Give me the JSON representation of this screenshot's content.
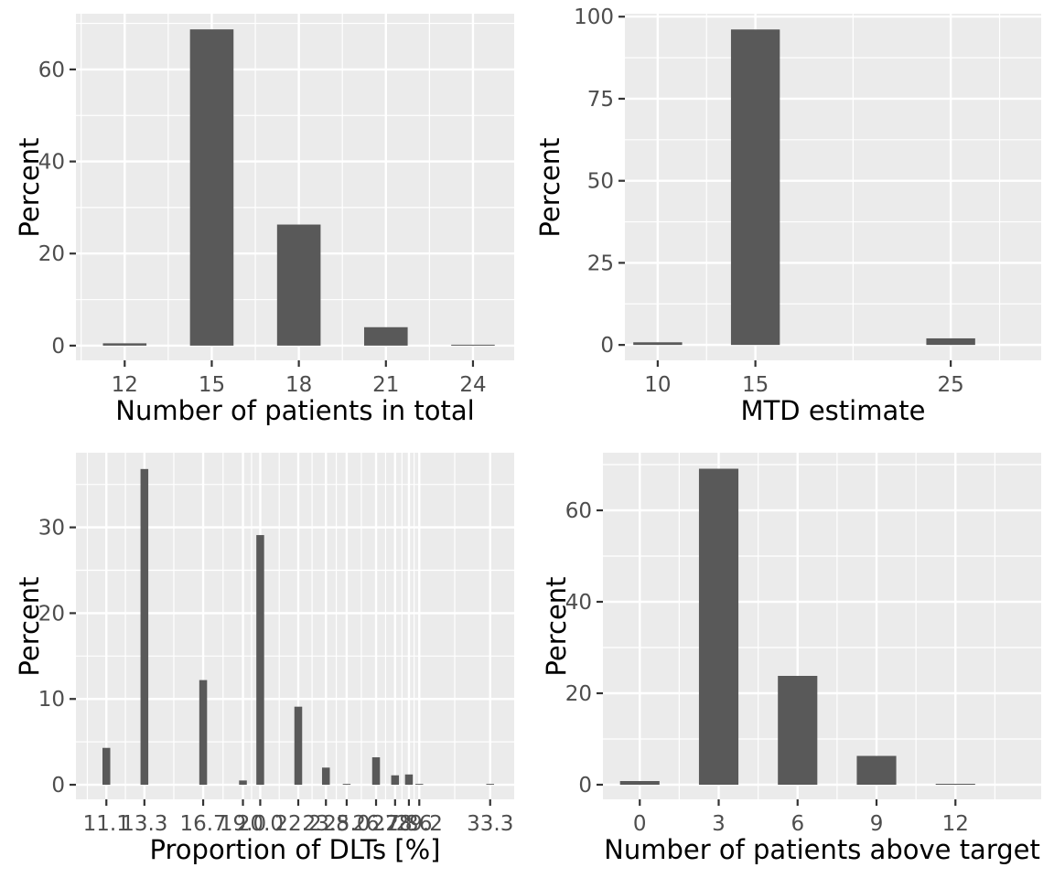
{
  "figure": {
    "background": "#FFFFFF",
    "layout": "2x2-grid"
  },
  "style": {
    "panel_bg": "#EBEBEB",
    "grid_color": "#FFFFFF",
    "bar_color": "#595959",
    "tick_mark_color": "#333333",
    "tick_label_color": "#4D4D4D",
    "axis_title_color": "#000000"
  },
  "chart_data": [
    {
      "id": "number-of-patients-in-total",
      "type": "bar",
      "position": "top-left",
      "title": "",
      "xlabel": "Number of patients in total",
      "ylabel": "Percent",
      "x": [
        12,
        15,
        18,
        21,
        24
      ],
      "values": [
        0.5,
        68.7,
        26.3,
        4.0,
        0.2
      ],
      "bar_width": 1.5,
      "x_ticks": [
        12,
        15,
        18,
        21,
        24
      ],
      "x_tick_labels": [
        "12",
        "15",
        "18",
        "21",
        "24"
      ],
      "x_minor": [
        10.5,
        13.5,
        16.5,
        19.5,
        22.5
      ],
      "y_ticks": [
        0,
        20,
        40,
        60
      ],
      "y_tick_labels": [
        "0",
        "20",
        "40",
        "60"
      ],
      "y_minor": [
        10,
        30,
        50,
        70
      ],
      "xlim": [
        10.32,
        25.42
      ],
      "ylim": [
        -3.2,
        72.1
      ],
      "grid": true,
      "legend": "none"
    },
    {
      "id": "mtd-estimate",
      "type": "bar",
      "position": "top-right",
      "title": "",
      "xlabel": "MTD estimate",
      "ylabel": "Percent",
      "x": [
        10,
        15,
        25
      ],
      "values": [
        0.8,
        96.1,
        2.0
      ],
      "bar_width": 2.5,
      "x_ticks": [
        10,
        15,
        25
      ],
      "x_tick_labels": [
        "10",
        "15",
        "25"
      ],
      "x_minor": [
        12.5,
        20,
        27.5
      ],
      "y_ticks": [
        0,
        25,
        50,
        75,
        100
      ],
      "y_tick_labels": [
        "0",
        "25",
        "50",
        "75",
        "100"
      ],
      "y_minor": [
        12.5,
        37.5,
        62.5,
        87.5
      ],
      "xlim": [
        8.32,
        29.63
      ],
      "ylim": [
        -4.7,
        100.9
      ],
      "grid": true,
      "legend": "none"
    },
    {
      "id": "proportion-of-dlts",
      "type": "bar",
      "position": "bottom-left",
      "title": "",
      "xlabel": "Proportion of DLTs [%]",
      "ylabel": "Percent",
      "x": [
        11.1,
        13.3,
        16.7,
        19.0,
        20.0,
        22.2,
        23.8,
        25.0,
        26.7,
        27.8,
        28.6,
        29.2,
        33.3
      ],
      "values": [
        4.3,
        36.8,
        12.2,
        0.5,
        29.1,
        9.1,
        2.0,
        0.1,
        3.2,
        1.1,
        1.2,
        0.1,
        0.1
      ],
      "bar_width": 0.45,
      "x_ticks": [
        11.1,
        13.3,
        16.7,
        19.0,
        20.0,
        22.2,
        23.8,
        25.0,
        26.7,
        27.8,
        28.6,
        29.2,
        33.3
      ],
      "x_tick_labels": [
        "11.1",
        "13.3",
        "16.7",
        "19.0",
        "20.0",
        "22.2",
        "23.8",
        "25.0",
        "26.7",
        "27.8",
        "28.6",
        "29.2",
        "33.3"
      ],
      "x_minor": [
        10.0,
        12.2,
        15.0,
        17.85,
        19.5,
        21.1,
        23.0,
        24.4,
        25.85,
        27.25,
        28.2,
        28.9,
        31.25
      ],
      "y_ticks": [
        0,
        10,
        20,
        30
      ],
      "y_tick_labels": [
        "0",
        "10",
        "20",
        "30"
      ],
      "y_minor": [
        5,
        15,
        25,
        35
      ],
      "xlim": [
        9.34,
        34.69
      ],
      "ylim": [
        -1.7,
        38.7
      ],
      "grid": true,
      "legend": "none"
    },
    {
      "id": "number-of-patients-above-target",
      "type": "bar",
      "position": "bottom-right",
      "title": "",
      "xlabel": "Number of patients above target",
      "ylabel": "Percent",
      "x": [
        0,
        3,
        6,
        9,
        12
      ],
      "values": [
        0.8,
        69.1,
        23.8,
        6.3,
        0.2
      ],
      "bar_width": 1.5,
      "x_ticks": [
        0,
        3,
        6,
        9,
        12
      ],
      "x_tick_labels": [
        "0",
        "3",
        "6",
        "9",
        "12"
      ],
      "x_minor": [
        1.5,
        4.5,
        7.5,
        10.5,
        13.5
      ],
      "y_ticks": [
        0,
        20,
        40,
        60
      ],
      "y_tick_labels": [
        "0",
        "20",
        "40",
        "60"
      ],
      "y_minor": [
        10,
        30,
        50,
        70
      ],
      "xlim": [
        -1.4,
        15.26
      ],
      "ylim": [
        -3.2,
        72.6
      ],
      "grid": true,
      "legend": "none"
    }
  ]
}
